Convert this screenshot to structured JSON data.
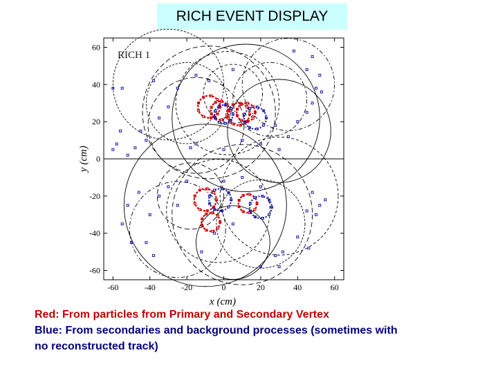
{
  "title": "RICH  EVENT DISPLAY",
  "chart_data": {
    "type": "scatter",
    "title": "",
    "panel_label": "RICH 1",
    "xlabel": "x  (cm)",
    "ylabel": "y  (cm)",
    "xlim": [
      -65,
      65
    ],
    "ylim": [
      -65,
      65
    ],
    "x_ticks": [
      "-60",
      "-40",
      "-20",
      "0",
      "20",
      "40",
      "60"
    ],
    "y_ticks": [
      "60",
      "40",
      "20",
      "0",
      "-20",
      "-40",
      "-60"
    ],
    "x_tick_values": [
      -60,
      -40,
      -20,
      0,
      20,
      40,
      60
    ],
    "y_tick_values": [
      60,
      40,
      20,
      0,
      -20,
      -40,
      -60
    ],
    "colors": {
      "red": "#d00000",
      "blue": "#1a1aa8",
      "rings": "#000000"
    },
    "red_rings": [
      {
        "x": -8,
        "y": 28,
        "r": 6
      },
      {
        "x": -2,
        "y": 26,
        "r": 5
      },
      {
        "x": 8,
        "y": 24,
        "r": 6
      },
      {
        "x": 12,
        "y": 25,
        "r": 5
      },
      {
        "x": -10,
        "y": -22,
        "r": 6
      },
      {
        "x": -7,
        "y": -34,
        "r": 5
      },
      {
        "x": 13,
        "y": -24,
        "r": 5
      }
    ],
    "blue_rings": [
      {
        "x": 0,
        "y": 24,
        "r": 5
      },
      {
        "x": 17,
        "y": 22,
        "r": 6
      },
      {
        "x": -2,
        "y": -22,
        "r": 6
      },
      {
        "x": 20,
        "y": -26,
        "r": 6
      }
    ],
    "black_rings": [
      {
        "x": 2,
        "y": 30,
        "r": 28
      },
      {
        "x": -8,
        "y": 25,
        "r": 36
      },
      {
        "x": 12,
        "y": 22,
        "r": 40
      },
      {
        "x": -20,
        "y": 30,
        "r": 22
      },
      {
        "x": 25,
        "y": 32,
        "r": 20
      },
      {
        "x": 5,
        "y": 35,
        "r": 16
      },
      {
        "x": -15,
        "y": 18,
        "r": 26
      },
      {
        "x": 30,
        "y": 15,
        "r": 28
      },
      {
        "x": -30,
        "y": 40,
        "r": 30
      },
      {
        "x": 35,
        "y": 40,
        "r": 25
      },
      {
        "x": -3,
        "y": -28,
        "r": 28
      },
      {
        "x": 10,
        "y": -30,
        "r": 38
      },
      {
        "x": -10,
        "y": -25,
        "r": 44
      },
      {
        "x": 20,
        "y": -35,
        "r": 24
      },
      {
        "x": -25,
        "y": -38,
        "r": 26
      },
      {
        "x": 30,
        "y": -20,
        "r": 32
      },
      {
        "x": -18,
        "y": -20,
        "r": 18
      },
      {
        "x": 5,
        "y": -45,
        "r": 20
      }
    ],
    "hits": [
      [
        -55,
        38
      ],
      [
        -58,
        8
      ],
      [
        -60,
        5
      ],
      [
        -52,
        2
      ],
      [
        -48,
        6
      ],
      [
        -56,
        15
      ],
      [
        -42,
        10
      ],
      [
        -35,
        22
      ],
      [
        -30,
        28
      ],
      [
        -25,
        38
      ],
      [
        -38,
        42
      ],
      [
        -45,
        15
      ],
      [
        -60,
        38
      ],
      [
        48,
        55
      ],
      [
        52,
        45
      ],
      [
        50,
        38
      ],
      [
        53,
        36
      ],
      [
        48,
        30
      ],
      [
        45,
        25
      ],
      [
        40,
        20
      ],
      [
        35,
        12
      ],
      [
        28,
        18
      ],
      [
        45,
        48
      ],
      [
        38,
        58
      ],
      [
        -15,
        8
      ],
      [
        -18,
        6
      ],
      [
        -15,
        45
      ],
      [
        0,
        5
      ],
      [
        10,
        10
      ],
      [
        20,
        8
      ],
      [
        30,
        5
      ],
      [
        -8,
        42
      ],
      [
        5,
        48
      ],
      [
        -55,
        -35
      ],
      [
        -52,
        -25
      ],
      [
        -46,
        -18
      ],
      [
        -40,
        -30
      ],
      [
        -35,
        -20
      ],
      [
        -30,
        -15
      ],
      [
        -25,
        -25
      ],
      [
        -42,
        -45
      ],
      [
        -38,
        -52
      ],
      [
        -50,
        -45
      ],
      [
        48,
        -18
      ],
      [
        52,
        -25
      ],
      [
        55,
        -22
      ],
      [
        50,
        -30
      ],
      [
        45,
        -28
      ],
      [
        40,
        -42
      ],
      [
        46,
        -48
      ],
      [
        32,
        -50
      ],
      [
        28,
        -52
      ],
      [
        20,
        -58
      ],
      [
        30,
        -58
      ],
      [
        -5,
        -40
      ],
      [
        -12,
        -50
      ],
      [
        5,
        -35
      ],
      [
        0,
        -12
      ],
      [
        10,
        -10
      ],
      [
        20,
        -15
      ],
      [
        -20,
        -12
      ]
    ]
  },
  "caption": {
    "line1": "Red:  From particles from Primary and Secondary Vertex",
    "line2": "Blue: From secondaries and background processes (sometimes with",
    "line3": "no reconstructed track)"
  }
}
